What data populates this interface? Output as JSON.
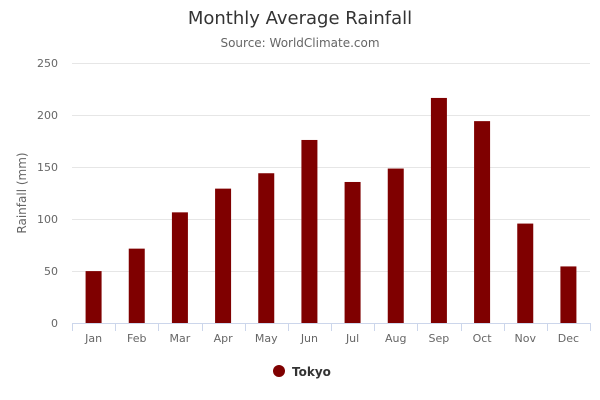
{
  "chart_data": {
    "type": "bar",
    "title": "Monthly Average Rainfall",
    "subtitle": "Source: WorldClimate.com",
    "xlabel": "",
    "ylabel": "Rainfall (mm)",
    "categories": [
      "Jan",
      "Feb",
      "Mar",
      "Apr",
      "May",
      "Jun",
      "Jul",
      "Aug",
      "Sep",
      "Oct",
      "Nov",
      "Dec"
    ],
    "series": [
      {
        "name": "Tokyo",
        "color": "#7f0000",
        "values": [
          49.9,
          71.5,
          106.4,
          129.2,
          144.0,
          176.0,
          135.6,
          148.5,
          216.4,
          194.1,
          95.6,
          54.4
        ]
      }
    ],
    "ylim": [
      0,
      250
    ],
    "yticks": [
      0,
      50,
      100,
      150,
      200,
      250
    ],
    "grid": true,
    "legend_position": "bottom-center"
  }
}
